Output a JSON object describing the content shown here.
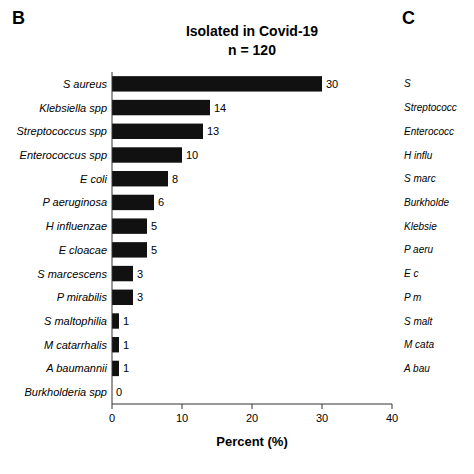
{
  "chart_data": {
    "type": "bar",
    "orientation": "horizontal",
    "title": "Isolated in Covid-19",
    "subtitle": "n = 120",
    "categories": [
      "S aureus",
      "Klebsiella spp",
      "Streptococcus spp",
      "Enterococcus spp",
      "E coli",
      "P aeruginosa",
      "H influenzae",
      "E cloacae",
      "S marcescens",
      "P mirabilis",
      "S maltophilia",
      "M catarrhalis",
      "A baumannii",
      "Burkholderia spp"
    ],
    "values": [
      30,
      14,
      13,
      10,
      8,
      6,
      5,
      5,
      3,
      3,
      1,
      1,
      1,
      0
    ],
    "color": "#111111",
    "xlim": [
      0,
      40
    ],
    "xticks": [
      0,
      10,
      20,
      30,
      40
    ],
    "xlabel": "Percent (%)",
    "data_labels": true,
    "panel_labels": [
      "B",
      "C"
    ],
    "annotations": [
      "S",
      "Streptococc",
      "Enterococc",
      "H influ",
      "S marc",
      "Burkholde",
      "Klebsie",
      "P aeru",
      "E c",
      "P m",
      "S malt",
      "M cata",
      "A bau"
    ]
  }
}
